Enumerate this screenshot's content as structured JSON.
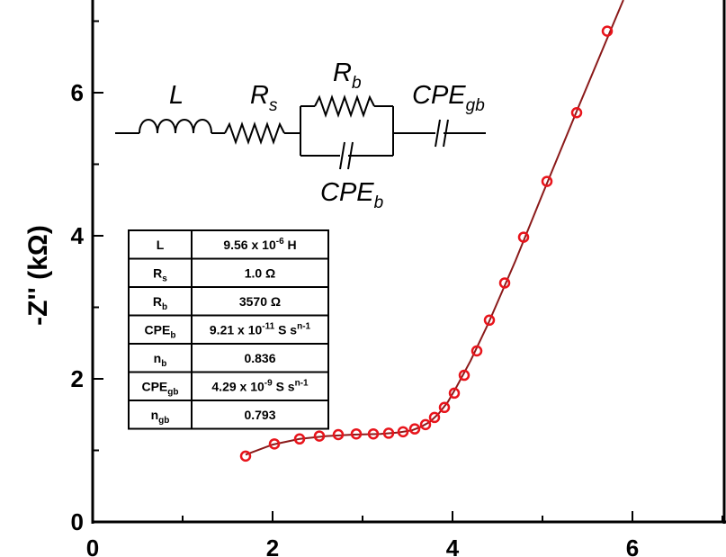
{
  "chart_data": {
    "type": "scatter",
    "xlabel": "",
    "ylabel": "-Z'' (kΩ)",
    "xlim": [
      0,
      7
    ],
    "ylim": [
      0,
      7
    ],
    "xticks": [
      "0",
      "2",
      "4",
      "6"
    ],
    "yticks": [
      "0",
      "2",
      "4",
      "6"
    ],
    "grid": false,
    "series": [
      {
        "kind": "points",
        "marker": "open-circle",
        "color": "#e8141b",
        "x": [
          1.7,
          2.02,
          2.3,
          2.52,
          2.73,
          2.93,
          3.12,
          3.29,
          3.45,
          3.58,
          3.7,
          3.8,
          3.91,
          4.02,
          4.13,
          4.27,
          4.41,
          4.58,
          4.79,
          5.05,
          5.38,
          5.72
        ],
        "y": [
          0.92,
          1.09,
          1.16,
          1.2,
          1.22,
          1.23,
          1.23,
          1.24,
          1.26,
          1.3,
          1.36,
          1.46,
          1.6,
          1.8,
          2.05,
          2.39,
          2.82,
          3.34,
          3.98,
          4.76,
          5.72,
          6.86
        ]
      },
      {
        "kind": "fit-line",
        "color": "#8b1a1a",
        "x": [
          1.7,
          2.0,
          2.3,
          2.6,
          2.9,
          3.2,
          3.4,
          3.55,
          3.65,
          3.75,
          3.85,
          3.95,
          4.05,
          4.2,
          4.4,
          4.7,
          5.0,
          5.4,
          5.8,
          5.9
        ],
        "y": [
          0.94,
          1.08,
          1.16,
          1.2,
          1.22,
          1.23,
          1.25,
          1.28,
          1.33,
          1.4,
          1.52,
          1.68,
          1.9,
          2.25,
          2.78,
          3.65,
          4.58,
          5.8,
          7.0,
          7.3
        ]
      }
    ],
    "circuit": {
      "labels": {
        "L": {
          "main": "L",
          "sub": ""
        },
        "Rs": {
          "main": "R",
          "sub": "s"
        },
        "Rb": {
          "main": "R",
          "sub": "b"
        },
        "CPEb": {
          "main": "CPE",
          "sub": "b"
        },
        "CPEgb": {
          "main": "CPE",
          "sub": "gb"
        }
      }
    },
    "table": [
      {
        "name": "L",
        "name_sub": "",
        "value": "9.56 x 10",
        "value_sup": "-6",
        "value_tail": " H",
        "value_sup2": ""
      },
      {
        "name": "R",
        "name_sub": "s",
        "value": "1.0 Ω",
        "value_sup": "",
        "value_tail": "",
        "value_sup2": ""
      },
      {
        "name": "R",
        "name_sub": "b",
        "value": "3570 Ω",
        "value_sup": "",
        "value_tail": "",
        "value_sup2": ""
      },
      {
        "name": "CPE",
        "name_sub": "b",
        "value": "9.21 x 10",
        "value_sup": "-11",
        "value_tail": " S s",
        "value_sup2": "n-1"
      },
      {
        "name": "n",
        "name_sub": "b",
        "value": "0.836",
        "value_sup": "",
        "value_tail": "",
        "value_sup2": ""
      },
      {
        "name": "CPE",
        "name_sub": "gb",
        "value": "4.29 x 10",
        "value_sup": "-9",
        "value_tail": " S s",
        "value_sup2": "n-1"
      },
      {
        "name": "n",
        "name_sub": "gb",
        "value": "0.793",
        "value_sup": "",
        "value_tail": "",
        "value_sup2": ""
      }
    ]
  }
}
